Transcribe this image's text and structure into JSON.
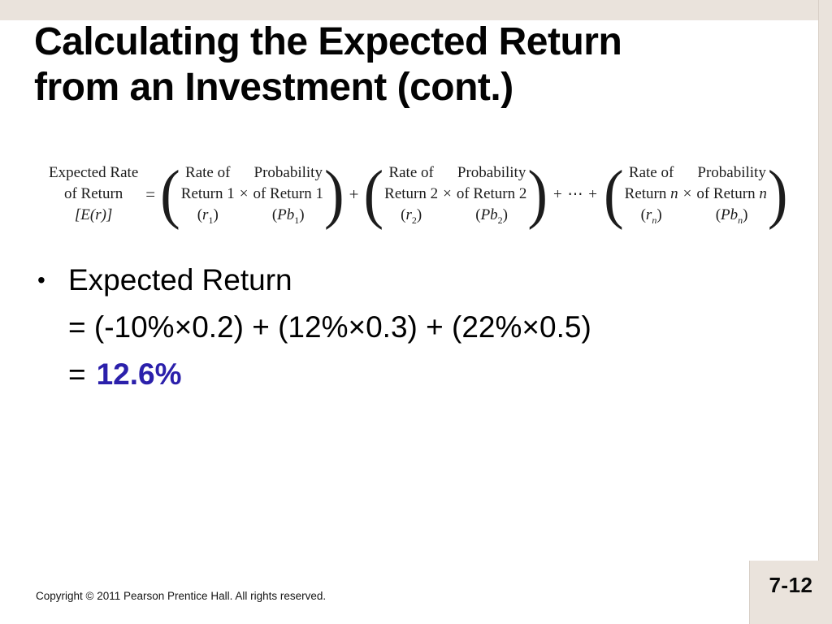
{
  "colors": {
    "beige": "#eae3dc",
    "accent_blue": "#2b20ab",
    "edge": "#d8cfc7"
  },
  "title": {
    "line1": "Calculating the Expected Return",
    "line2": "from an Investment (cont.)"
  },
  "formula": {
    "lhs_line1": "Expected Rate",
    "lhs_line2": "of Return",
    "lhs_line3": "[E(r)]",
    "eq": "=",
    "times": "×",
    "plus": "+",
    "dots": "+ ⋯ +",
    "paren_open": "(",
    "paren_close": ")",
    "groups": [
      {
        "rate_line1": "Rate of",
        "rate_line2_text": "Return",
        "rate_line2_var": "1",
        "rate_symbol": "r",
        "rate_sub": "1",
        "prob_line1": "Probability",
        "prob_line2_text": "of Return",
        "prob_line2_var": "1",
        "prob_symbol": "Pb",
        "prob_sub": "1"
      },
      {
        "rate_line1": "Rate of",
        "rate_line2_text": "Return",
        "rate_line2_var": "2",
        "rate_symbol": "r",
        "rate_sub": "2",
        "prob_line1": "Probability",
        "prob_line2_text": "of Return",
        "prob_line2_var": "2",
        "prob_symbol": "Pb",
        "prob_sub": "2"
      },
      {
        "rate_line1": "Rate of",
        "rate_line2_text": "Return",
        "rate_line2_var": "n",
        "rate_symbol": "r",
        "rate_sub": "n",
        "prob_line1": "Probability",
        "prob_line2_text": "of Return",
        "prob_line2_var": "n",
        "prob_symbol": "Pb",
        "prob_sub": "n"
      }
    ]
  },
  "body": {
    "bullet": "•",
    "line1": "Expected Return",
    "line2": "= (-10%×0.2) + (12%×0.3) + (22%×0.5)",
    "line3_prefix": "=",
    "line3_value": "12.6%"
  },
  "footer": {
    "copyright": "Copyright © 2011 Pearson Prentice Hall. All rights reserved.",
    "page_number": "7-12"
  }
}
